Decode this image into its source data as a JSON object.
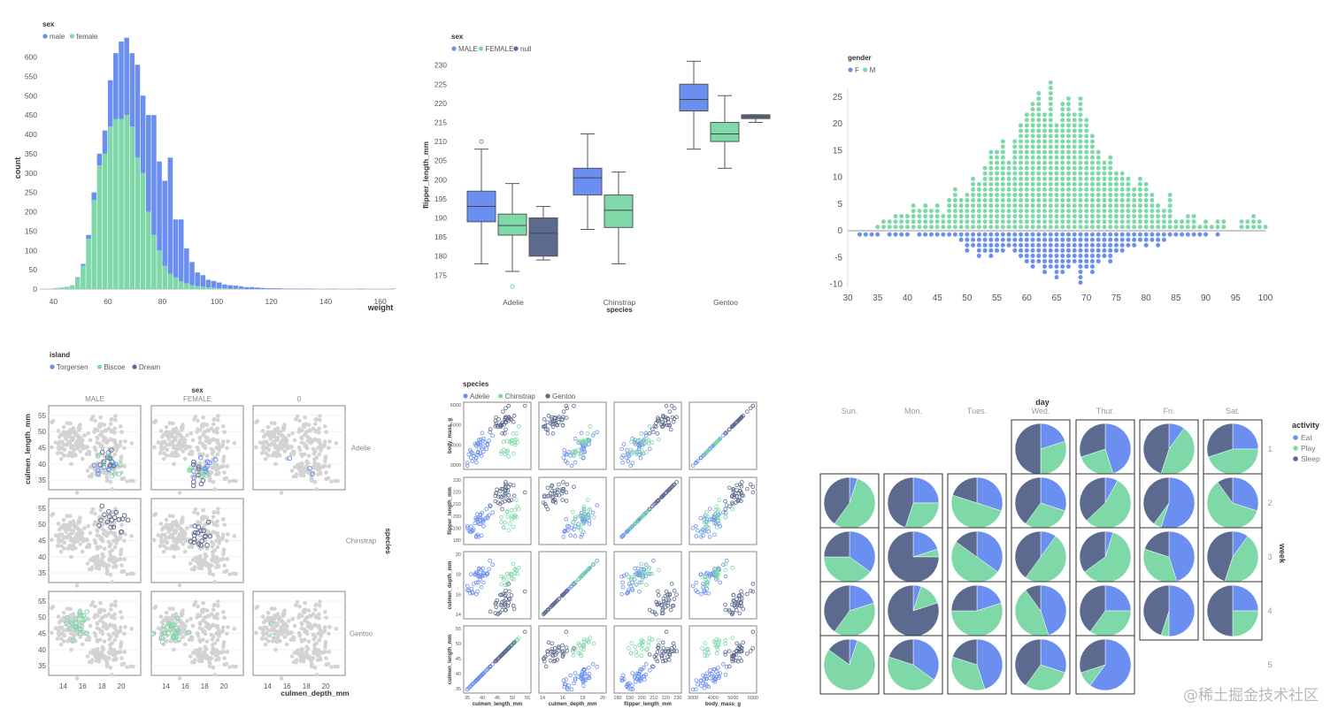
{
  "colors": {
    "blue": "#6b8ff0",
    "green": "#7fd8a8",
    "dark": "#5d6a8f",
    "gray": "#d3d3d3",
    "axis": "#bbbbbb",
    "tick": "#555555"
  },
  "watermark": "@稀土掘金技术社区",
  "chart_data": [
    {
      "type": "bar",
      "subtype": "stacked-histogram",
      "legend_title": "sex",
      "legend": [
        "male",
        "female"
      ],
      "xlabel": "weight",
      "ylabel": "count",
      "xlim": [
        35,
        165
      ],
      "ylim": [
        0,
        640
      ],
      "xticks": [
        40,
        60,
        80,
        100,
        120,
        140,
        160
      ],
      "yticks": [
        0,
        50,
        100,
        150,
        200,
        250,
        300,
        350,
        400,
        450,
        500,
        550,
        600
      ],
      "bin_start": 40,
      "bin_width": 2,
      "series": [
        {
          "name": "female",
          "values": [
            3,
            4,
            6,
            10,
            28,
            60,
            130,
            230,
            320,
            350,
            420,
            440,
            440,
            450,
            420,
            340,
            300,
            200,
            140,
            100,
            60,
            40,
            30,
            20,
            15,
            10,
            8,
            6,
            4,
            3,
            2,
            2,
            1,
            1,
            1,
            0,
            0,
            0,
            0,
            0,
            0,
            0,
            0,
            0,
            0,
            0,
            0,
            0,
            0,
            0,
            0,
            0,
            0,
            0,
            0,
            0,
            0,
            0,
            0,
            0,
            0,
            0,
            0
          ]
        },
        {
          "name": "male",
          "values": [
            0,
            0,
            0,
            0,
            2,
            5,
            10,
            20,
            30,
            60,
            120,
            170,
            200,
            200,
            190,
            240,
            200,
            250,
            310,
            230,
            220,
            300,
            150,
            160,
            90,
            60,
            35,
            30,
            20,
            18,
            15,
            10,
            9,
            8,
            6,
            5,
            5,
            4,
            3,
            2,
            2,
            2,
            1,
            1,
            1,
            1,
            1,
            1,
            0,
            0,
            0,
            1,
            0,
            0,
            0,
            0,
            1,
            0,
            0,
            0,
            0,
            0,
            1
          ]
        }
      ]
    },
    {
      "type": "box",
      "legend_title": "sex",
      "legend": [
        "MALE",
        "FEMALE",
        "null"
      ],
      "xlabel": "species",
      "ylabel": "flipper_length_mm",
      "categories": [
        "Adelie",
        "Chinstrap",
        "Gentoo"
      ],
      "ylim": [
        173,
        232
      ],
      "yticks": [
        175,
        180,
        185,
        190,
        195,
        200,
        205,
        210,
        215,
        220,
        225,
        230
      ],
      "boxes": [
        {
          "species": "Adelie",
          "sex": "MALE",
          "min": 178,
          "q1": 189,
          "median": 193,
          "q3": 197,
          "max": 208,
          "outliers": [
            210
          ]
        },
        {
          "species": "Adelie",
          "sex": "FEMALE",
          "min": 176,
          "q1": 185.5,
          "median": 188,
          "q3": 191,
          "max": 199,
          "outliers": [
            172
          ]
        },
        {
          "species": "Adelie",
          "sex": "null",
          "min": 179,
          "q1": 180,
          "median": 186,
          "q3": 190,
          "max": 193,
          "outliers": []
        },
        {
          "species": "Chinstrap",
          "sex": "MALE",
          "min": 187,
          "q1": 196,
          "median": 200.5,
          "q3": 203,
          "max": 212,
          "outliers": []
        },
        {
          "species": "Chinstrap",
          "sex": "FEMALE",
          "min": 178,
          "q1": 187.5,
          "median": 192,
          "q3": 196,
          "max": 202,
          "outliers": []
        },
        {
          "species": "Gentoo",
          "sex": "MALE",
          "min": 208,
          "q1": 218,
          "median": 221,
          "q3": 225,
          "max": 231,
          "outliers": []
        },
        {
          "species": "Gentoo",
          "sex": "FEMALE",
          "min": 203,
          "q1": 210,
          "median": 212,
          "q3": 215,
          "max": 222,
          "outliers": []
        },
        {
          "species": "Gentoo",
          "sex": "null",
          "min": 215,
          "q1": 216,
          "median": 216.5,
          "q3": 217,
          "max": 217,
          "outliers": []
        }
      ]
    },
    {
      "type": "scatter",
      "subtype": "dot-histogram",
      "legend_title": "gender",
      "legend": [
        "F",
        "M"
      ],
      "xlim": [
        30,
        100
      ],
      "ylim": [
        -10,
        27
      ],
      "xticks": [
        30,
        35,
        40,
        45,
        50,
        55,
        60,
        65,
        70,
        75,
        80,
        85,
        90,
        95,
        100
      ],
      "yticks": [
        -10,
        -5,
        0,
        5,
        10,
        15,
        20,
        25
      ],
      "bin_start": 30,
      "bin_width": 1,
      "series": [
        {
          "name": "M",
          "values": [
            0,
            0,
            0,
            0,
            0,
            1,
            2,
            2,
            3,
            3,
            3,
            5,
            4,
            5,
            4,
            5,
            3,
            6,
            8,
            6,
            7,
            10,
            9,
            12,
            15,
            15,
            17,
            13,
            17,
            20,
            22,
            24,
            26,
            22,
            28,
            20,
            24,
            25,
            22,
            25,
            21,
            18,
            15,
            13,
            14,
            11,
            11,
            10,
            8,
            10,
            9,
            7,
            5,
            4,
            7,
            2,
            2,
            3,
            3,
            1,
            2,
            1,
            2,
            2,
            0,
            0,
            2,
            2,
            3,
            2,
            1
          ]
        },
        {
          "name": "F",
          "values": [
            0,
            0,
            -1,
            -1,
            -1,
            -1,
            0,
            -1,
            -1,
            -1,
            -1,
            0,
            -1,
            -1,
            -1,
            -1,
            -1,
            -1,
            -1,
            -2,
            -4,
            -3,
            -5,
            -4,
            -5,
            -4,
            -4,
            -3,
            -4,
            -5,
            -6,
            -7,
            -6,
            -8,
            -7,
            -9,
            -8,
            -7,
            -6,
            -10,
            -7,
            -8,
            -6,
            -5,
            -6,
            -4,
            -4,
            -3,
            -3,
            -2,
            -3,
            -2,
            -3,
            -2,
            -1,
            -1,
            -1,
            -1,
            -1,
            -1,
            -1,
            0,
            -1,
            0,
            0,
            0,
            0,
            0,
            0,
            0,
            0
          ]
        }
      ]
    },
    {
      "type": "scatter",
      "subtype": "faceted-scatter",
      "legend_title": "island",
      "legend": [
        "Torgersen",
        "Biscoe",
        "Dream"
      ],
      "column_title": "sex",
      "columns": [
        "MALE",
        "FEMALE",
        "0"
      ],
      "row_title": "species",
      "rows": [
        "Adelie",
        "Chinstrap",
        "Gentoo"
      ],
      "xlabel": "culmen_depth_mm",
      "ylabel": "culmen_length_mm",
      "xlim": [
        12.5,
        22
      ],
      "ylim": [
        32,
        58
      ],
      "xticks": [
        14,
        16,
        18,
        20
      ],
      "yticks": [
        35,
        40,
        45,
        50,
        55
      ]
    },
    {
      "type": "scatter",
      "subtype": "scatter-matrix",
      "legend_title": "species",
      "legend": [
        "Adelie",
        "Chinstrap",
        "Gentoo"
      ],
      "variables": [
        "culmen_length_mm",
        "culmen_depth_mm",
        "flipper_length_mm",
        "body_mass_g"
      ],
      "row_labels": [
        "body_mass_g",
        "flipper_length_mm",
        "culmen_depth_mm",
        "culmen_length_mm"
      ],
      "bottom_ticks": [
        [
          "35",
          "40",
          "45",
          "50",
          "55"
        ],
        [
          "14",
          "16",
          "18",
          "20"
        ],
        [
          "180",
          "190",
          "200",
          "210",
          "220",
          "230"
        ],
        [
          "3000",
          "4000",
          "5000",
          "6000"
        ]
      ],
      "left_ticks": [
        [
          "3000",
          "4000",
          "5000",
          "6000"
        ],
        [
          "180",
          "190",
          "200",
          "210",
          "220",
          "230"
        ],
        [
          "14",
          "16",
          "18",
          "20"
        ],
        [
          "35",
          "40",
          "45",
          "50",
          "55"
        ]
      ]
    },
    {
      "type": "pie",
      "subtype": "calendar-pie-grid",
      "column_title": "day",
      "days": [
        "Sun.",
        "Mon.",
        "Tues.",
        "Wed.",
        "Thur.",
        "Fri.",
        "Sat."
      ],
      "row_title": "week",
      "weeks": [
        "1",
        "2",
        "3",
        "4",
        "5"
      ],
      "legend_title": "activity",
      "legend": [
        "Eat",
        "Play",
        "Sleep"
      ],
      "cells": [
        {
          "week": 1,
          "day": 3,
          "values": [
            0.2,
            0.3,
            0.5
          ]
        },
        {
          "week": 1,
          "day": 4,
          "values": [
            0.45,
            0.25,
            0.3
          ]
        },
        {
          "week": 1,
          "day": 5,
          "values": [
            0.1,
            0.45,
            0.45
          ]
        },
        {
          "week": 1,
          "day": 6,
          "values": [
            0.25,
            0.45,
            0.3
          ]
        },
        {
          "week": 2,
          "day": 0,
          "values": [
            0.05,
            0.55,
            0.4
          ]
        },
        {
          "week": 2,
          "day": 1,
          "values": [
            0.25,
            0.3,
            0.45
          ]
        },
        {
          "week": 2,
          "day": 2,
          "values": [
            0.3,
            0.5,
            0.2
          ]
        },
        {
          "week": 2,
          "day": 3,
          "values": [
            0.3,
            0.3,
            0.4
          ]
        },
        {
          "week": 2,
          "day": 4,
          "values": [
            0.08,
            0.55,
            0.37
          ]
        },
        {
          "week": 2,
          "day": 5,
          "values": [
            0.55,
            0.05,
            0.4
          ]
        },
        {
          "week": 2,
          "day": 6,
          "values": [
            0.3,
            0.6,
            0.1
          ]
        },
        {
          "week": 3,
          "day": 0,
          "values": [
            0.35,
            0.4,
            0.25
          ]
        },
        {
          "week": 3,
          "day": 1,
          "values": [
            0.2,
            0.05,
            0.75
          ]
        },
        {
          "week": 3,
          "day": 2,
          "values": [
            0.35,
            0.5,
            0.15
          ]
        },
        {
          "week": 3,
          "day": 3,
          "values": [
            0.1,
            0.5,
            0.4
          ]
        },
        {
          "week": 3,
          "day": 4,
          "values": [
            0.05,
            0.6,
            0.35
          ]
        },
        {
          "week": 3,
          "day": 5,
          "values": [
            0.45,
            0.35,
            0.2
          ]
        },
        {
          "week": 3,
          "day": 6,
          "values": [
            0.1,
            0.45,
            0.45
          ]
        },
        {
          "week": 4,
          "day": 0,
          "values": [
            0.2,
            0.4,
            0.4
          ]
        },
        {
          "week": 4,
          "day": 1,
          "values": [
            0.05,
            0.15,
            0.8
          ]
        },
        {
          "week": 4,
          "day": 2,
          "values": [
            0.2,
            0.55,
            0.25
          ]
        },
        {
          "week": 4,
          "day": 3,
          "values": [
            0.45,
            0.45,
            0.1
          ]
        },
        {
          "week": 4,
          "day": 4,
          "values": [
            0.25,
            0.35,
            0.4
          ]
        },
        {
          "week": 4,
          "day": 5,
          "values": [
            0.5,
            0.05,
            0.45
          ]
        },
        {
          "week": 4,
          "day": 6,
          "values": [
            0.25,
            0.25,
            0.5
          ]
        },
        {
          "week": 5,
          "day": 0,
          "values": [
            0.05,
            0.8,
            0.15
          ]
        },
        {
          "week": 5,
          "day": 1,
          "values": [
            0.35,
            0.45,
            0.2
          ]
        },
        {
          "week": 5,
          "day": 2,
          "values": [
            0.45,
            0.35,
            0.2
          ]
        },
        {
          "week": 5,
          "day": 3,
          "values": [
            0.3,
            0.3,
            0.4
          ]
        },
        {
          "week": 5,
          "day": 4,
          "values": [
            0.6,
            0.1,
            0.3
          ]
        }
      ]
    }
  ]
}
